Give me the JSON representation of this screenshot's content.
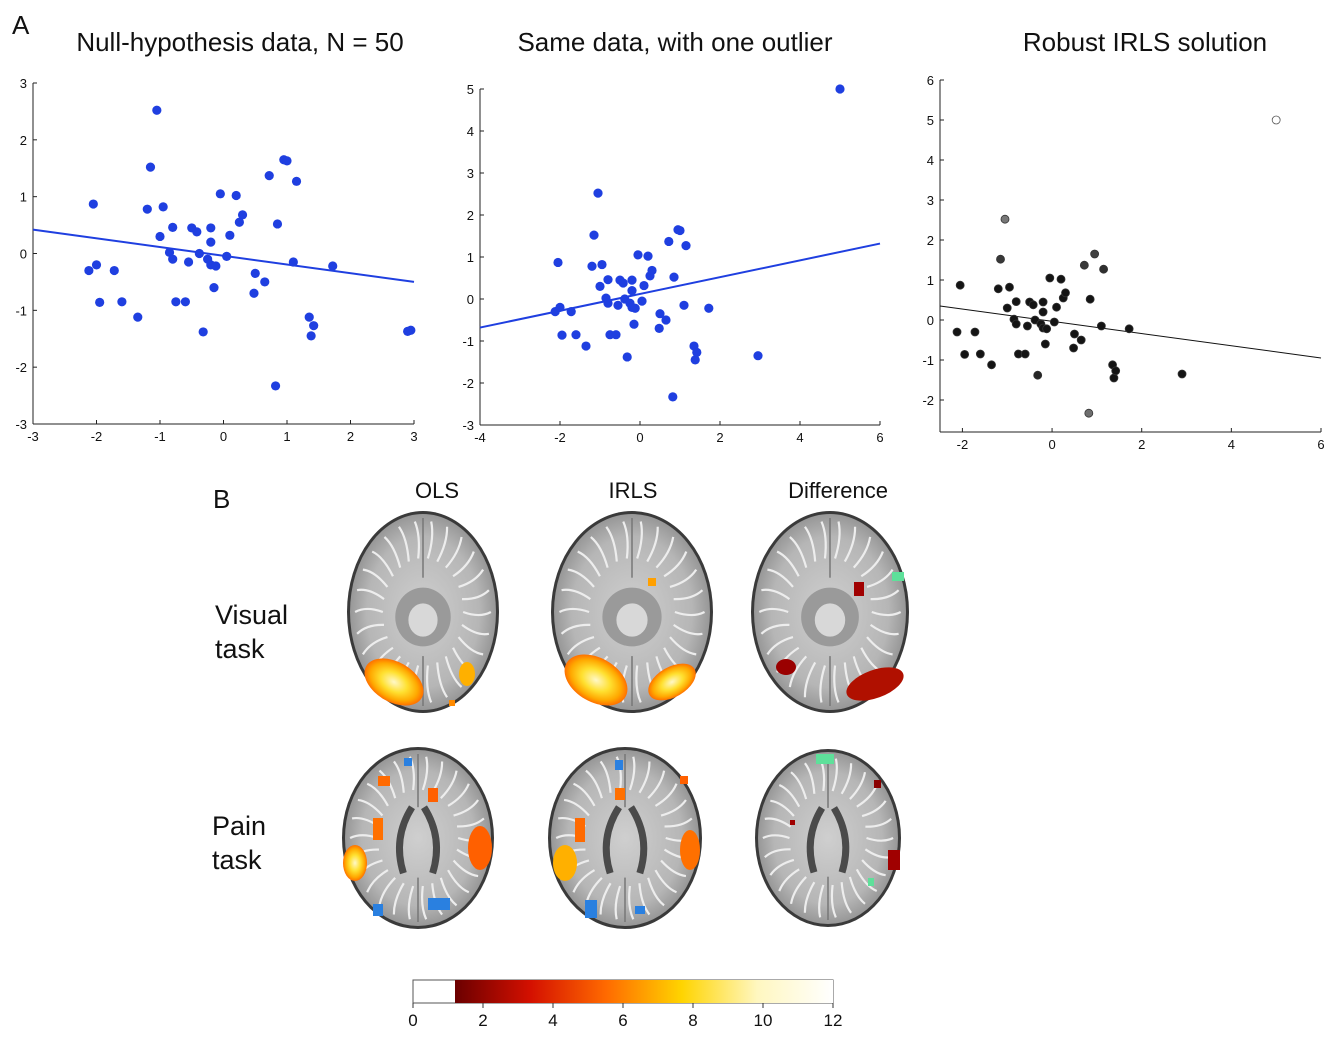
{
  "panelA": {
    "label": "A"
  },
  "panelB": {
    "label": "B",
    "columns": [
      "OLS",
      "IRLS",
      "Difference"
    ],
    "rows": [
      {
        "line1": "Visual",
        "line2": "task"
      },
      {
        "line1": "Pain",
        "line2": "task"
      }
    ]
  },
  "chart_data": [
    {
      "type": "scatter",
      "title": "Null-hypothesis data, N = 50",
      "xlim": [
        -3,
        3
      ],
      "ylim": [
        -3,
        3
      ],
      "xticks": [
        -3,
        -2,
        -1,
        0,
        1,
        2,
        3
      ],
      "yticks": [
        -3,
        -2,
        -1,
        0,
        1,
        2,
        3
      ],
      "point_color": "#1f3fe0",
      "line_color": "#1f3fe0",
      "fit_line": {
        "x": [
          -3,
          3
        ],
        "y": [
          0.42,
          -0.5
        ]
      },
      "points": [
        [
          -2.05,
          0.87
        ],
        [
          -2.12,
          -0.3
        ],
        [
          -2.0,
          -0.2
        ],
        [
          -1.95,
          -0.86
        ],
        [
          -1.72,
          -0.3
        ],
        [
          -1.6,
          -0.85
        ],
        [
          -1.35,
          -1.12
        ],
        [
          -1.2,
          0.78
        ],
        [
          -1.15,
          1.52
        ],
        [
          -1.05,
          2.52
        ],
        [
          -1.0,
          0.3
        ],
        [
          -0.95,
          0.82
        ],
        [
          -0.85,
          0.02
        ],
        [
          -0.8,
          -0.1
        ],
        [
          -0.8,
          0.46
        ],
        [
          -0.75,
          -0.85
        ],
        [
          -0.6,
          -0.85
        ],
        [
          -0.55,
          -0.15
        ],
        [
          -0.5,
          0.45
        ],
        [
          -0.42,
          0.38
        ],
        [
          -0.38,
          0.0
        ],
        [
          -0.32,
          -1.38
        ],
        [
          -0.25,
          -0.1
        ],
        [
          -0.2,
          0.45
        ],
        [
          -0.2,
          0.2
        ],
        [
          -0.2,
          -0.2
        ],
        [
          -0.15,
          -0.6
        ],
        [
          -0.12,
          -0.22
        ],
        [
          -0.05,
          1.05
        ],
        [
          0.05,
          -0.05
        ],
        [
          0.1,
          0.32
        ],
        [
          0.2,
          1.02
        ],
        [
          0.25,
          0.55
        ],
        [
          0.3,
          0.68
        ],
        [
          0.5,
          -0.35
        ],
        [
          0.48,
          -0.7
        ],
        [
          0.65,
          -0.5
        ],
        [
          0.72,
          1.37
        ],
        [
          0.82,
          -2.33
        ],
        [
          0.85,
          0.52
        ],
        [
          0.95,
          1.65
        ],
        [
          1.0,
          1.63
        ],
        [
          1.15,
          1.27
        ],
        [
          1.1,
          -0.15
        ],
        [
          1.35,
          -1.12
        ],
        [
          1.38,
          -1.45
        ],
        [
          1.42,
          -1.27
        ],
        [
          1.72,
          -0.22
        ],
        [
          2.95,
          -1.35
        ],
        [
          2.9,
          -1.37
        ]
      ]
    },
    {
      "type": "scatter",
      "title": "Same data, with one outlier",
      "xlim": [
        -4,
        6
      ],
      "ylim": [
        -3,
        5
      ],
      "xticks": [
        -4,
        -2,
        0,
        2,
        4,
        6
      ],
      "yticks": [
        -3,
        -2,
        -1,
        0,
        1,
        2,
        3,
        4,
        5
      ],
      "point_color": "#1f3fe0",
      "line_color": "#1f3fe0",
      "fit_line": {
        "x": [
          -4,
          6
        ],
        "y": [
          -0.68,
          1.32
        ]
      },
      "points": [
        [
          -2.05,
          0.87
        ],
        [
          -2.12,
          -0.3
        ],
        [
          -2.0,
          -0.2
        ],
        [
          -1.95,
          -0.86
        ],
        [
          -1.72,
          -0.3
        ],
        [
          -1.6,
          -0.85
        ],
        [
          -1.35,
          -1.12
        ],
        [
          -1.2,
          0.78
        ],
        [
          -1.15,
          1.52
        ],
        [
          -1.05,
          2.52
        ],
        [
          -1.0,
          0.3
        ],
        [
          -0.95,
          0.82
        ],
        [
          -0.85,
          0.02
        ],
        [
          -0.8,
          -0.1
        ],
        [
          -0.8,
          0.46
        ],
        [
          -0.75,
          -0.85
        ],
        [
          -0.6,
          -0.85
        ],
        [
          -0.55,
          -0.15
        ],
        [
          -0.5,
          0.45
        ],
        [
          -0.42,
          0.38
        ],
        [
          -0.38,
          0.0
        ],
        [
          -0.32,
          -1.38
        ],
        [
          -0.25,
          -0.1
        ],
        [
          -0.2,
          0.45
        ],
        [
          -0.2,
          0.2
        ],
        [
          -0.2,
          -0.2
        ],
        [
          -0.15,
          -0.6
        ],
        [
          -0.12,
          -0.22
        ],
        [
          -0.05,
          1.05
        ],
        [
          0.05,
          -0.05
        ],
        [
          0.1,
          0.32
        ],
        [
          0.2,
          1.02
        ],
        [
          0.25,
          0.55
        ],
        [
          0.3,
          0.68
        ],
        [
          0.5,
          -0.35
        ],
        [
          0.48,
          -0.7
        ],
        [
          0.65,
          -0.5
        ],
        [
          0.72,
          1.37
        ],
        [
          0.82,
          -2.33
        ],
        [
          0.85,
          0.52
        ],
        [
          0.95,
          1.65
        ],
        [
          1.0,
          1.63
        ],
        [
          1.15,
          1.27
        ],
        [
          1.1,
          -0.15
        ],
        [
          1.35,
          -1.12
        ],
        [
          1.38,
          -1.45
        ],
        [
          1.42,
          -1.27
        ],
        [
          1.72,
          -0.22
        ],
        [
          2.95,
          -1.35
        ],
        [
          5.0,
          5.0
        ]
      ]
    },
    {
      "type": "scatter",
      "title": "Robust IRLS solution",
      "xlim": [
        -2.5,
        6
      ],
      "ylim": [
        -2.8,
        6
      ],
      "xticks": [
        -2,
        0,
        2,
        4,
        6
      ],
      "yticks": [
        -2,
        -1,
        0,
        1,
        2,
        3,
        4,
        5,
        6
      ],
      "point_color": "#111111",
      "line_color": "#111111",
      "fit_line": {
        "x": [
          -2.5,
          6
        ],
        "y": [
          0.35,
          -0.95
        ]
      },
      "notes": "points shaded by IRLS weight; low-weight points are lighter, the outlier is hollow",
      "points": [
        [
          -2.05,
          0.87,
          1
        ],
        [
          -2.12,
          -0.3,
          1
        ],
        [
          -1.95,
          -0.86,
          1
        ],
        [
          -1.72,
          -0.3,
          1
        ],
        [
          -1.6,
          -0.85,
          1
        ],
        [
          -1.35,
          -1.12,
          1
        ],
        [
          -1.2,
          0.78,
          1
        ],
        [
          -1.15,
          1.52,
          0.8
        ],
        [
          -1.05,
          2.52,
          0.45
        ],
        [
          -1.0,
          0.3,
          1
        ],
        [
          -0.95,
          0.82,
          1
        ],
        [
          -0.85,
          0.02,
          1
        ],
        [
          -0.8,
          -0.1,
          1
        ],
        [
          -0.8,
          0.46,
          1
        ],
        [
          -0.75,
          -0.85,
          1
        ],
        [
          -0.6,
          -0.85,
          1
        ],
        [
          -0.55,
          -0.15,
          1
        ],
        [
          -0.5,
          0.45,
          1
        ],
        [
          -0.42,
          0.38,
          1
        ],
        [
          -0.38,
          0.0,
          1
        ],
        [
          -0.32,
          -1.38,
          0.9
        ],
        [
          -0.25,
          -0.1,
          1
        ],
        [
          -0.2,
          0.45,
          1
        ],
        [
          -0.2,
          0.2,
          1
        ],
        [
          -0.2,
          -0.2,
          1
        ],
        [
          -0.15,
          -0.6,
          1
        ],
        [
          -0.12,
          -0.22,
          1
        ],
        [
          -0.05,
          1.05,
          1
        ],
        [
          0.05,
          -0.05,
          1
        ],
        [
          0.1,
          0.32,
          1
        ],
        [
          0.2,
          1.02,
          1
        ],
        [
          0.25,
          0.55,
          1
        ],
        [
          0.3,
          0.68,
          1
        ],
        [
          0.5,
          -0.35,
          1
        ],
        [
          0.48,
          -0.7,
          1
        ],
        [
          0.65,
          -0.5,
          1
        ],
        [
          0.72,
          1.37,
          0.8
        ],
        [
          0.82,
          -2.33,
          0.5
        ],
        [
          0.85,
          0.52,
          1
        ],
        [
          0.95,
          1.65,
          0.75
        ],
        [
          1.15,
          1.27,
          0.85
        ],
        [
          1.1,
          -0.15,
          1
        ],
        [
          1.35,
          -1.12,
          1
        ],
        [
          1.38,
          -1.45,
          1
        ],
        [
          1.42,
          -1.27,
          1
        ],
        [
          1.72,
          -0.22,
          1
        ],
        [
          2.9,
          -1.35,
          1
        ],
        [
          5.0,
          5.0,
          0
        ]
      ]
    },
    {
      "type": "heatmap",
      "title": "",
      "colorbar": {
        "min": 0,
        "max": 12,
        "ticks": [
          0,
          2,
          4,
          6,
          8,
          10,
          12
        ],
        "colors": [
          "#6b0000",
          "#d41000",
          "#ff6a00",
          "#ffd400",
          "#fff7c0",
          "#ffffff"
        ]
      }
    }
  ]
}
